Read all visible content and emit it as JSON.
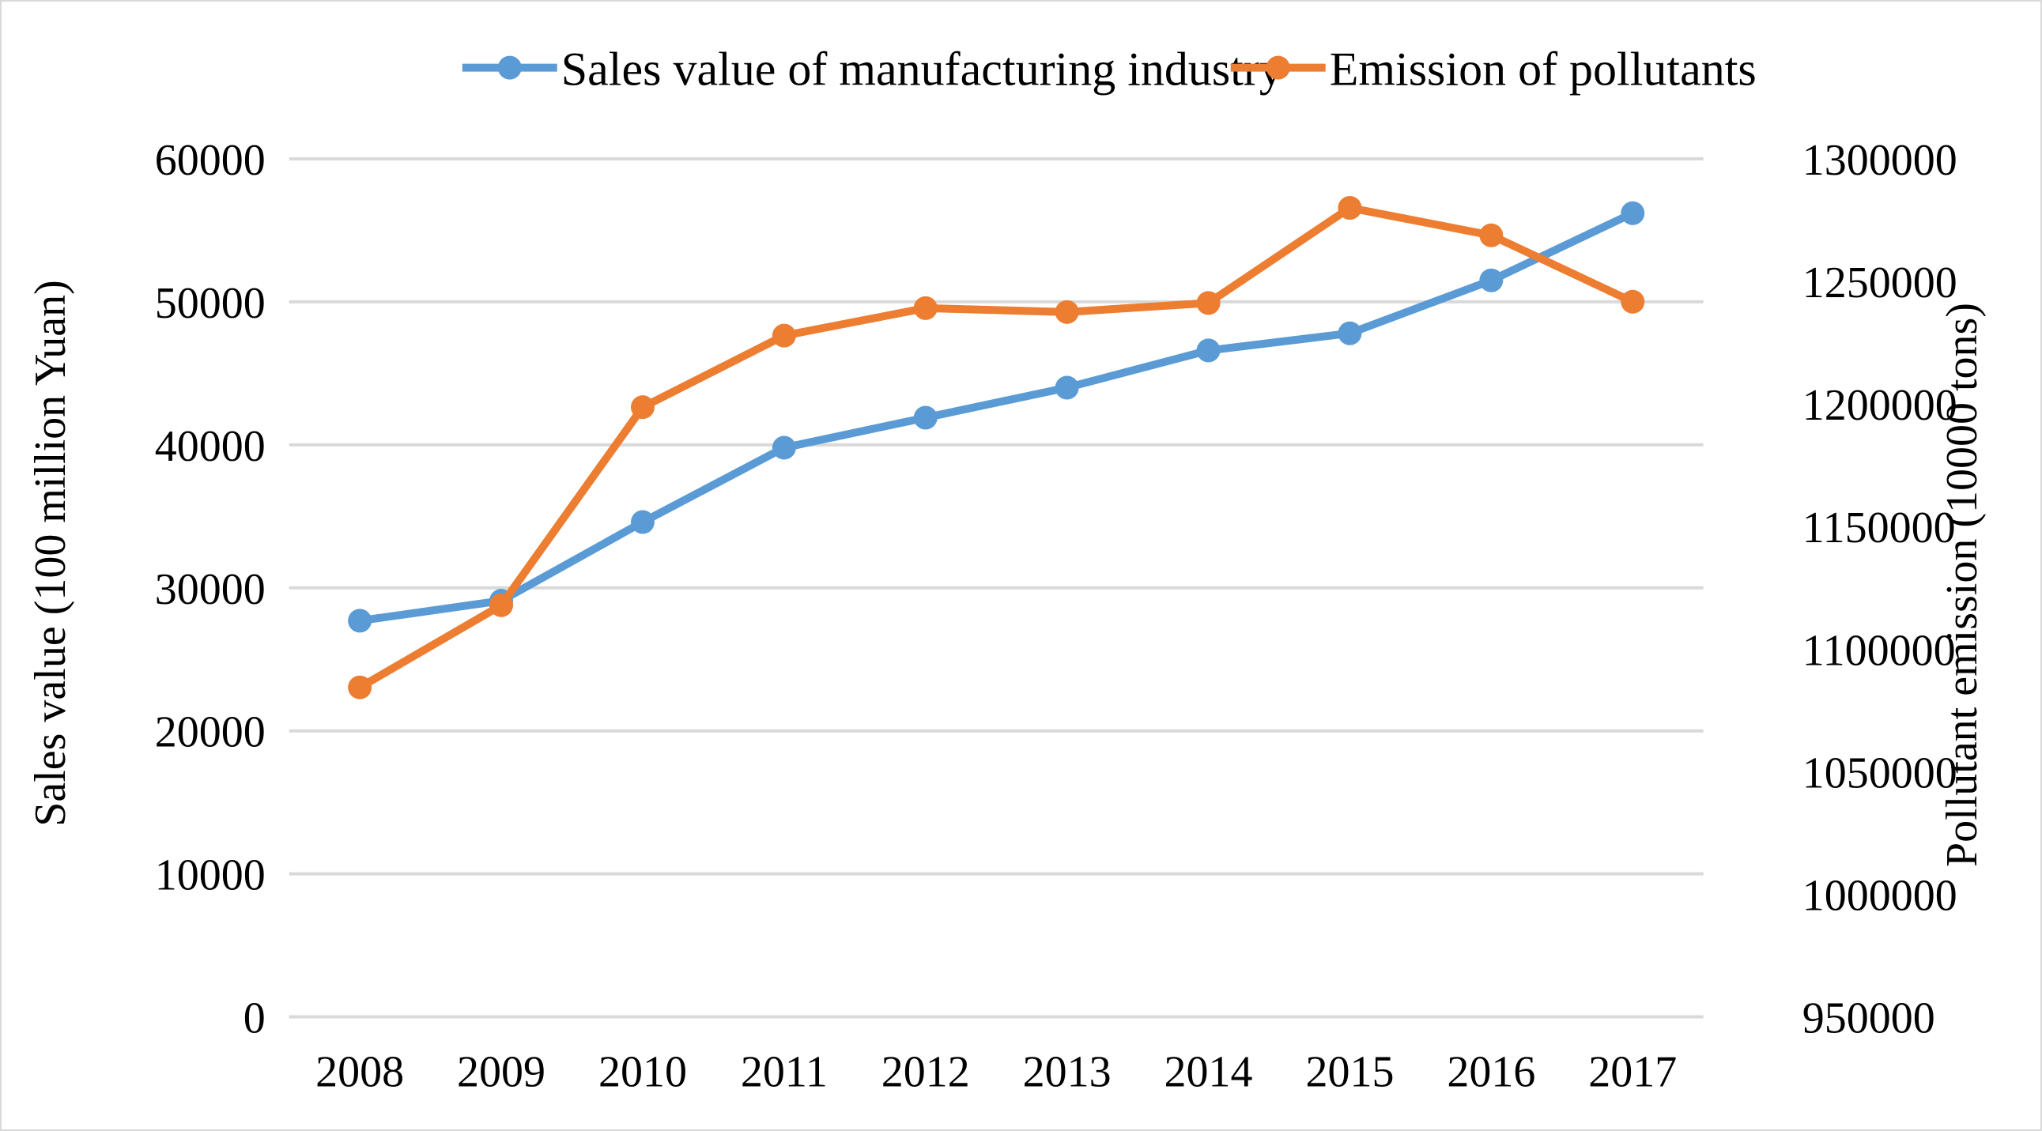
{
  "chart_data": {
    "type": "line",
    "title": "",
    "categories": [
      "2008",
      "2009",
      "2010",
      "2011",
      "2012",
      "2013",
      "2014",
      "2015",
      "2016",
      "2017"
    ],
    "series": [
      {
        "name": "Sales value of manufacturing industry",
        "axis": "left",
        "color": "#5b9bd5",
        "values": [
          27700,
          29100,
          34600,
          39800,
          41900,
          44000,
          46600,
          47800,
          51500,
          56200
        ]
      },
      {
        "name": "Emission of pollutants",
        "axis": "right",
        "color": "#ed7d31",
        "values": [
          1084400,
          1117900,
          1198700,
          1227900,
          1239100,
          1237500,
          1241200,
          1280000,
          1268800,
          1241700
        ]
      }
    ],
    "ylabel": "Sales value (100 million Yuan)",
    "y2label": "Pollutant emission (10000 tons)",
    "xlabel": "",
    "ylim": [
      0,
      60000
    ],
    "y2lim": [
      950000,
      1300000
    ],
    "yticks": [
      "0",
      "10000",
      "20000",
      "30000",
      "40000",
      "50000",
      "60000"
    ],
    "y2ticks": [
      "950000",
      "1000000",
      "1050000",
      "1100000",
      "1150000",
      "1200000",
      "1250000",
      "1300000"
    ],
    "grid": true,
    "legend_position": "top"
  }
}
